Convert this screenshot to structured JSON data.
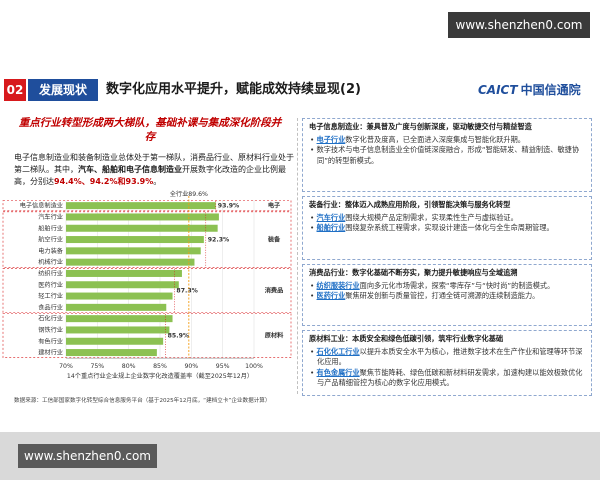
{
  "watermark_top": "www.shenzhen0.com",
  "watermark_bottom": "www.shenzhen0.com",
  "header": {
    "number": "02",
    "section": "发展现状",
    "title": "数字化应用水平提升，赋能成效持续显现(2)",
    "logo_mark": "CAICT",
    "logo_name": "中国信通院"
  },
  "left": {
    "heading": "重点行业转型形成两大梯队，基础补课与集成深化阶段并存",
    "paragraph": [
      "电子信息制造业和装备制造业总体处于第一梯队，消费品行业、原材料行业处于第二梯队。其中，",
      "汽车、船舶和电子信息制造业",
      "开展数字化改造的企业比例最高，分别达",
      "94.4%、94.2%和93.9%",
      "。"
    ],
    "source": "数据来源：工信部国家数字化转型综合信息服务平台（基于2025年12月底，“建档立卡”企业数据计算）"
  },
  "chart_data": {
    "type": "bar",
    "orientation": "horizontal",
    "x_label": "14个重点行业企业规上企业数字化改造覆盖率（截至2025年12月）",
    "color": "#8cc152",
    "group_color": "#d7191c",
    "xlim": [
      70,
      100
    ],
    "xticks": [
      {
        "value": 70,
        "label": "70%"
      },
      {
        "value": 75,
        "label": "75%"
      },
      {
        "value": 80,
        "label": "80%"
      },
      {
        "value": 85,
        "label": "85%"
      },
      {
        "value": 90,
        "label": "90%"
      },
      {
        "value": 95,
        "label": "95%"
      },
      {
        "value": 100,
        "label": "100%"
      }
    ],
    "reference": {
      "value": 89.6,
      "label": "全行业89.6%",
      "color": "#f39c12"
    },
    "groups": [
      {
        "name": "电子",
        "average": 93.9,
        "average_label": "93.9%",
        "categories": [
          "电子信息制造业"
        ],
        "values": [
          93.9
        ]
      },
      {
        "name": "装备",
        "average": 92.3,
        "average_label": "92.3%",
        "categories": [
          "汽车行业",
          "船舶行业",
          "航空行业",
          "电力装备",
          "机械行业"
        ],
        "values": [
          94.4,
          94.2,
          92,
          91.5,
          90.5
        ]
      },
      {
        "name": "消费品",
        "average": 87.3,
        "average_label": "87.3%",
        "categories": [
          "纺织行业",
          "医药行业",
          "轻工行业",
          "食品行业"
        ],
        "values": [
          88.5,
          88,
          87,
          86
        ]
      },
      {
        "name": "原材料",
        "average": 85.9,
        "average_label": "85.9%",
        "categories": [
          "石化行业",
          "钢铁行业",
          "有色行业",
          "建材行业"
        ],
        "values": [
          87,
          86.5,
          85.5,
          84.5
        ]
      }
    ]
  },
  "panels": [
    {
      "title": "电子信息制造业：兼具普及广度与创新深度，驱动敏捷交付与精益智造",
      "bullets": [
        {
          "highlight": "电子行业",
          "text": "数字化普及度高，已全面进入深度集成与智能化跃升期。"
        },
        {
          "highlight": "",
          "text": "数字技术与电子信息制造业全价值链深度融合，形成“智能研发、精益制造、敏捷协同”的转型新模式。"
        }
      ]
    },
    {
      "title": "装备行业：整体迈入成熟应用阶段，引领智能决策与服务化转型",
      "bullets": [
        {
          "highlight": "汽车行业",
          "text": "围绕大规模产品定制需求，实现柔性生产与虚拟验证。"
        },
        {
          "highlight": "船舶行业",
          "text": "围绕复杂系统工程需求，实现设计建造一体化与全生命周期管理。"
        }
      ]
    },
    {
      "title": "消费品行业：数字化基础不断夯实，聚力提升敏捷响应与全域追溯",
      "bullets": [
        {
          "highlight": "纺织服装行业",
          "text": "面向多元化市场需求，探索“零库存”与“快时尚”的制造模式。"
        },
        {
          "highlight": "医药行业",
          "text": "聚焦研发创新与质量管控，打通全链可溯源的连续制造能力。"
        }
      ]
    },
    {
      "title": "原材料工业：本质安全和绿色低碳引领，筑牢行业数字化基础",
      "bullets": [
        {
          "highlight": "石化化工行业",
          "text": "以提升本质安全水平为核心，推进数字技术在生产作业和管理等环节深化应用。"
        },
        {
          "highlight": "有色金属行业",
          "text": "聚焦节能降耗、绿色低碳和新材料研发需求，加速构建以能效极致优化与产品精细管控为核心的数字化应用模式。"
        }
      ]
    }
  ]
}
